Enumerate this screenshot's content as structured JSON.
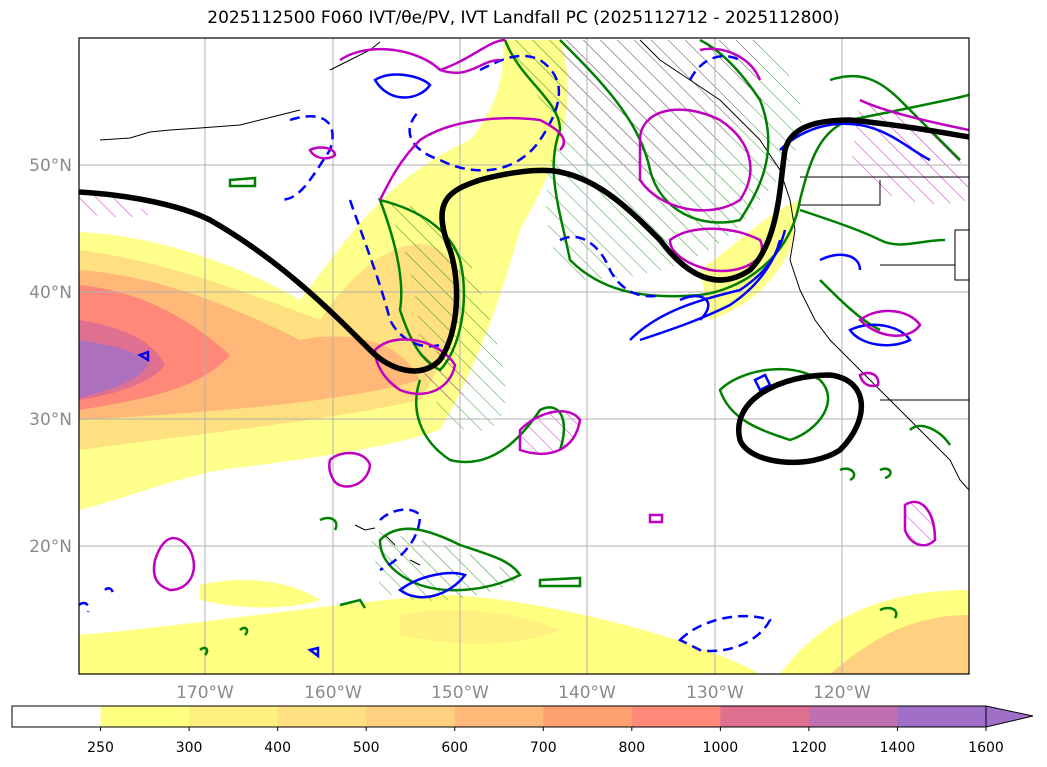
{
  "title": "2025112500 F060 IVT/θe/PV, IVT Landfall PC (2025112712 - 2025112800)",
  "map": {
    "lat_labels": [
      "50°N",
      "40°N",
      "30°N",
      "20°N"
    ],
    "lon_labels": [
      "170°W",
      "160°W",
      "150°W",
      "140°W",
      "130°W",
      "120°W"
    ]
  },
  "colorbar": {
    "ticks": [
      "250",
      "300",
      "400",
      "500",
      "600",
      "700",
      "800",
      "1000",
      "1200",
      "1400",
      "1600"
    ],
    "colors": [
      "#ffffff",
      "#ffff80",
      "#fff080",
      "#ffe080",
      "#ffd080",
      "#ffb878",
      "#ffa070",
      "#ff8878",
      "#e07090",
      "#c070b0",
      "#a070c8"
    ]
  },
  "contour_colors": {
    "ivt_fill_hi": "#e07090",
    "black": "#000000",
    "green": "#008000",
    "blue": "#0000ff",
    "magenta": "#c000c0"
  }
}
